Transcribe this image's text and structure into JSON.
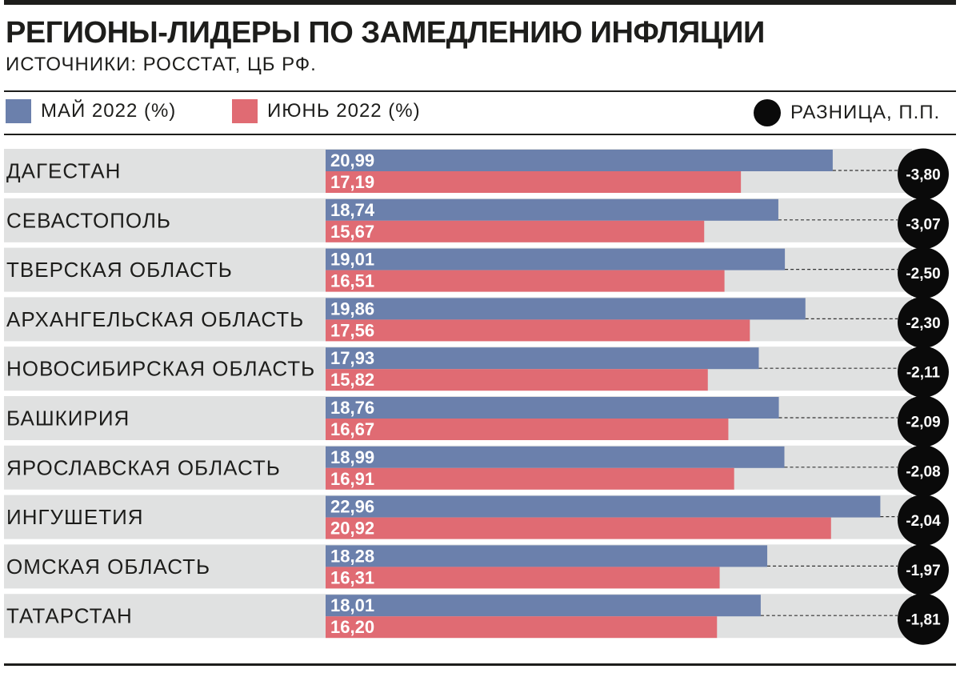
{
  "title": "РЕГИОНЫ-ЛИДЕРЫ ПО ЗАМЕДЛЕНИЮ ИНФЛЯЦИИ",
  "subtitle": "ИСТОЧНИКИ: РОССТАТ, ЦБ РФ.",
  "legend": {
    "may": "МАЙ 2022 (%)",
    "june": "ИЮНЬ 2022 (%)",
    "diff": "РАЗНИЦА, П.П."
  },
  "colors": {
    "may": "#6b80ac",
    "june": "#e06b73",
    "row_bg": "#e0e1e1",
    "diff_circle": "#0a0a0a",
    "text": "#1d1d1b"
  },
  "chart_data": {
    "type": "bar",
    "orientation": "horizontal",
    "categories": [
      "ДАГЕСТАН",
      "СЕВАСТОПОЛЬ",
      "ТВЕРСКАЯ ОБЛАСТЬ",
      "АРХАНГЕЛЬСКАЯ ОБЛАСТЬ",
      "НОВОСИБИРСКАЯ ОБЛАСТЬ",
      "БАШКИРИЯ",
      "ЯРОСЛАВСКАЯ ОБЛАСТЬ",
      "ИНГУШЕТИЯ",
      "ОМСКАЯ ОБЛАСТЬ",
      "ТАТАРСТАН"
    ],
    "series": [
      {
        "name": "МАЙ 2022 (%)",
        "values": [
          20.99,
          18.74,
          19.01,
          19.86,
          17.93,
          18.76,
          18.99,
          22.96,
          18.28,
          18.01
        ],
        "labels": [
          "20,99",
          "18,74",
          "19,01",
          "19,86",
          "17,93",
          "18,76",
          "18,99",
          "22,96",
          "18,28",
          "18,01"
        ]
      },
      {
        "name": "ИЮНЬ 2022 (%)",
        "values": [
          17.19,
          15.67,
          16.51,
          17.56,
          15.82,
          16.67,
          16.91,
          20.92,
          16.31,
          16.2
        ],
        "labels": [
          "17,19",
          "15,67",
          "16,51",
          "17,56",
          "15,82",
          "16,67",
          "16,91",
          "20,92",
          "16,31",
          "16,20"
        ]
      },
      {
        "name": "РАЗНИЦА, П.П.",
        "values": [
          -3.8,
          -3.07,
          -2.5,
          -2.3,
          -2.11,
          -2.09,
          -2.08,
          -2.04,
          -1.97,
          -1.81
        ],
        "labels": [
          "-3,80",
          "-3,07",
          "-2,50",
          "-2,30",
          "-2,11",
          "-2,09",
          "-2,08",
          "-2,04",
          "-1,97",
          "-1,81"
        ]
      }
    ],
    "xlim": [
      0,
      24
    ],
    "grid": false,
    "legend_position": "top"
  }
}
